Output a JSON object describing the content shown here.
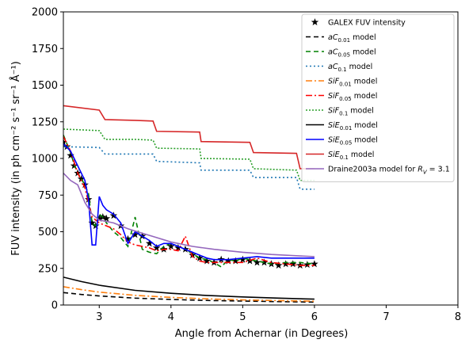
{
  "chart_data": {
    "type": "line",
    "title": "",
    "xlabel": "Angle from Achernar (in Degrees)",
    "ylabel": "FUV intensity (in ph cm⁻² s⁻¹ sr⁻¹ Å⁻¹)",
    "xlim": [
      2.5,
      8
    ],
    "ylim": [
      0,
      2000
    ],
    "xticks": [
      3,
      4,
      5,
      6,
      7,
      8
    ],
    "xtick_labels": [
      "3",
      "4",
      "5",
      "6",
      "7",
      "8"
    ],
    "yticks": [
      0,
      250,
      500,
      750,
      1000,
      1250,
      1500,
      1750,
      2000
    ],
    "ytick_labels": [
      "0",
      "250",
      "500",
      "750",
      "1000",
      "1250",
      "1500",
      "1750",
      "2000"
    ],
    "grid": false,
    "legend_position": "top-right",
    "series": [
      {
        "name": "GALEX FUV intensity",
        "style": "scatter",
        "marker": "star",
        "color": "#000000",
        "x": [
          2.5,
          2.55,
          2.6,
          2.65,
          2.7,
          2.75,
          2.8,
          2.85,
          2.9,
          2.95,
          3.0,
          3.05,
          3.1,
          3.2,
          3.3,
          3.4,
          3.5,
          3.6,
          3.7,
          3.8,
          3.9,
          4.0,
          4.1,
          4.2,
          4.3,
          4.4,
          4.5,
          4.6,
          4.7,
          4.8,
          4.9,
          5.0,
          5.1,
          5.2,
          5.3,
          5.4,
          5.5,
          5.6,
          5.7,
          5.8,
          5.9,
          6.0
        ],
        "y": [
          1110,
          1080,
          1020,
          950,
          900,
          860,
          820,
          720,
          560,
          540,
          590,
          600,
          590,
          610,
          540,
          450,
          480,
          470,
          420,
          390,
          380,
          400,
          390,
          380,
          340,
          320,
          300,
          290,
          310,
          300,
          300,
          310,
          300,
          290,
          290,
          280,
          270,
          280,
          280,
          270,
          275,
          280
        ]
      },
      {
        "name": "aC 0.01 model",
        "legend_label": "aC",
        "legend_sub": "0.01",
        "legend_suffix": " model",
        "style": "line",
        "dash": "6,4",
        "color": "#000000",
        "x": [
          2.5,
          2.75,
          3.0,
          3.5,
          4.0,
          4.5,
          5.0,
          5.5,
          6.0
        ],
        "y": [
          85,
          72,
          62,
          47,
          38,
          31,
          27,
          23,
          20
        ]
      },
      {
        "name": "aC 0.05 model",
        "legend_label": "aC",
        "legend_sub": "0.05",
        "legend_suffix": " model",
        "style": "line",
        "dash": "6,4",
        "color": "#008000",
        "x": [
          2.5,
          2.55,
          2.6,
          2.65,
          2.7,
          2.75,
          2.8,
          2.85,
          2.9,
          2.95,
          3.0,
          3.05,
          3.1,
          3.2,
          3.3,
          3.4,
          3.5,
          3.6,
          3.7,
          3.8,
          3.9,
          4.0,
          4.1,
          4.2,
          4.3,
          4.4,
          4.5,
          4.6,
          4.7,
          4.8,
          4.9,
          5.0,
          5.2,
          5.4,
          5.6,
          5.8,
          6.0
        ],
        "y": [
          1160,
          1100,
          1040,
          960,
          900,
          860,
          820,
          760,
          560,
          540,
          620,
          600,
          560,
          500,
          460,
          400,
          600,
          380,
          360,
          350,
          400,
          420,
          400,
          380,
          350,
          320,
          310,
          290,
          260,
          310,
          300,
          320,
          300,
          280,
          290,
          290,
          280
        ]
      },
      {
        "name": "aC 0.1 model",
        "legend_label": "aC",
        "legend_sub": "0.1",
        "legend_suffix": " model",
        "style": "line",
        "dash": "2,3",
        "color": "#1f77b4",
        "x": [
          2.5,
          3.0,
          3.08,
          3.5,
          3.75,
          3.8,
          4.4,
          4.42,
          5.1,
          5.15,
          5.75,
          5.8,
          6.0
        ],
        "y": [
          1080,
          1075,
          1030,
          1030,
          1030,
          980,
          970,
          920,
          920,
          870,
          870,
          790,
          790
        ]
      },
      {
        "name": "SiF 0.01 model",
        "legend_label": "SiF",
        "legend_sub": "0.01",
        "legend_suffix": " model",
        "style": "line",
        "dash": "8,3,2,3",
        "color": "#ff7f0e",
        "x": [
          2.5,
          2.75,
          3.0,
          3.5,
          4.0,
          4.5,
          5.0,
          5.5,
          6.0
        ],
        "y": [
          125,
          105,
          88,
          66,
          52,
          42,
          35,
          30,
          26
        ]
      },
      {
        "name": "SiF 0.05 model",
        "legend_label": "SiF",
        "legend_sub": "0.05",
        "legend_suffix": " model",
        "style": "line",
        "dash": "8,3,2,3",
        "color": "#ff0000",
        "x": [
          2.5,
          2.6,
          2.7,
          2.8,
          2.9,
          3.0,
          3.1,
          3.2,
          3.3,
          3.4,
          3.5,
          3.6,
          3.7,
          3.8,
          3.9,
          4.0,
          4.1,
          4.2,
          4.3,
          4.4,
          4.5,
          4.6,
          4.7,
          4.8,
          5.0,
          5.2,
          5.4,
          5.6,
          5.8,
          6.0
        ],
        "y": [
          1150,
          1050,
          900,
          800,
          600,
          560,
          540,
          520,
          480,
          430,
          410,
          400,
          390,
          370,
          380,
          380,
          370,
          470,
          330,
          300,
          290,
          290,
          290,
          290,
          290,
          320,
          290,
          280,
          270,
          270
        ]
      },
      {
        "name": "SiF 0.1 model",
        "legend_label": "SiF",
        "legend_sub": "0.1",
        "legend_suffix": " model",
        "style": "line",
        "dash": "2,2",
        "color": "#2ca02c",
        "x": [
          2.5,
          3.0,
          3.08,
          3.5,
          3.75,
          3.8,
          4.4,
          4.42,
          5.1,
          5.15,
          5.75,
          5.8,
          6.0
        ],
        "y": [
          1200,
          1190,
          1130,
          1130,
          1125,
          1070,
          1065,
          1000,
          995,
          930,
          920,
          850,
          850
        ]
      },
      {
        "name": "SiE 0.01 model",
        "legend_label": "SiE",
        "legend_sub": "0.01",
        "legend_suffix": " model",
        "style": "line",
        "dash": "",
        "color": "#000000",
        "x": [
          2.5,
          2.75,
          3.0,
          3.5,
          4.0,
          4.5,
          5.0,
          5.5,
          6.0
        ],
        "y": [
          190,
          160,
          135,
          100,
          80,
          65,
          55,
          47,
          40
        ]
      },
      {
        "name": "SiE 0.05 model",
        "legend_label": "SiE",
        "legend_sub": "0.05",
        "legend_suffix": " model",
        "style": "line",
        "dash": "",
        "color": "#0000ff",
        "x": [
          2.5,
          2.6,
          2.7,
          2.8,
          2.85,
          2.9,
          2.95,
          3.0,
          3.05,
          3.1,
          3.2,
          3.3,
          3.4,
          3.5,
          3.6,
          3.7,
          3.8,
          3.9,
          4.0,
          4.1,
          4.2,
          4.3,
          4.4,
          4.5,
          4.6,
          4.7,
          4.8,
          5.0,
          5.2,
          5.4,
          5.6,
          5.8,
          6.0
        ],
        "y": [
          1100,
          1050,
          950,
          850,
          720,
          410,
          410,
          740,
          680,
          650,
          620,
          560,
          420,
          500,
          470,
          440,
          400,
          420,
          420,
          400,
          380,
          360,
          340,
          320,
          310,
          310,
          310,
          320,
          330,
          320,
          320,
          320,
          320
        ]
      },
      {
        "name": "SiE 0.1 model",
        "legend_label": "SiE",
        "legend_sub": "0.1",
        "legend_suffix": " model",
        "style": "line",
        "dash": "",
        "color": "#d62728",
        "x": [
          2.5,
          3.0,
          3.08,
          3.5,
          3.75,
          3.8,
          4.4,
          4.42,
          5.1,
          5.15,
          5.75,
          5.8,
          6.0
        ],
        "y": [
          1360,
          1330,
          1265,
          1260,
          1255,
          1185,
          1180,
          1115,
          1110,
          1040,
          1035,
          930,
          930
        ]
      },
      {
        "name": "Draine2003a model for R_V = 3.1",
        "legend_label": "Draine2003a model for ",
        "legend_math": "R",
        "legend_sub": "V",
        "legend_suffix": " = 3.1",
        "style": "line",
        "dash": "",
        "color": "#9467bd",
        "x": [
          2.5,
          2.6,
          2.7,
          2.8,
          2.9,
          3.0,
          3.2,
          3.4,
          3.6,
          3.8,
          4.0,
          4.3,
          4.6,
          5.0,
          5.4,
          5.8,
          6.0
        ],
        "y": [
          900,
          850,
          820,
          700,
          620,
          580,
          560,
          520,
          490,
          460,
          430,
          400,
          380,
          360,
          345,
          335,
          330
        ]
      }
    ]
  }
}
